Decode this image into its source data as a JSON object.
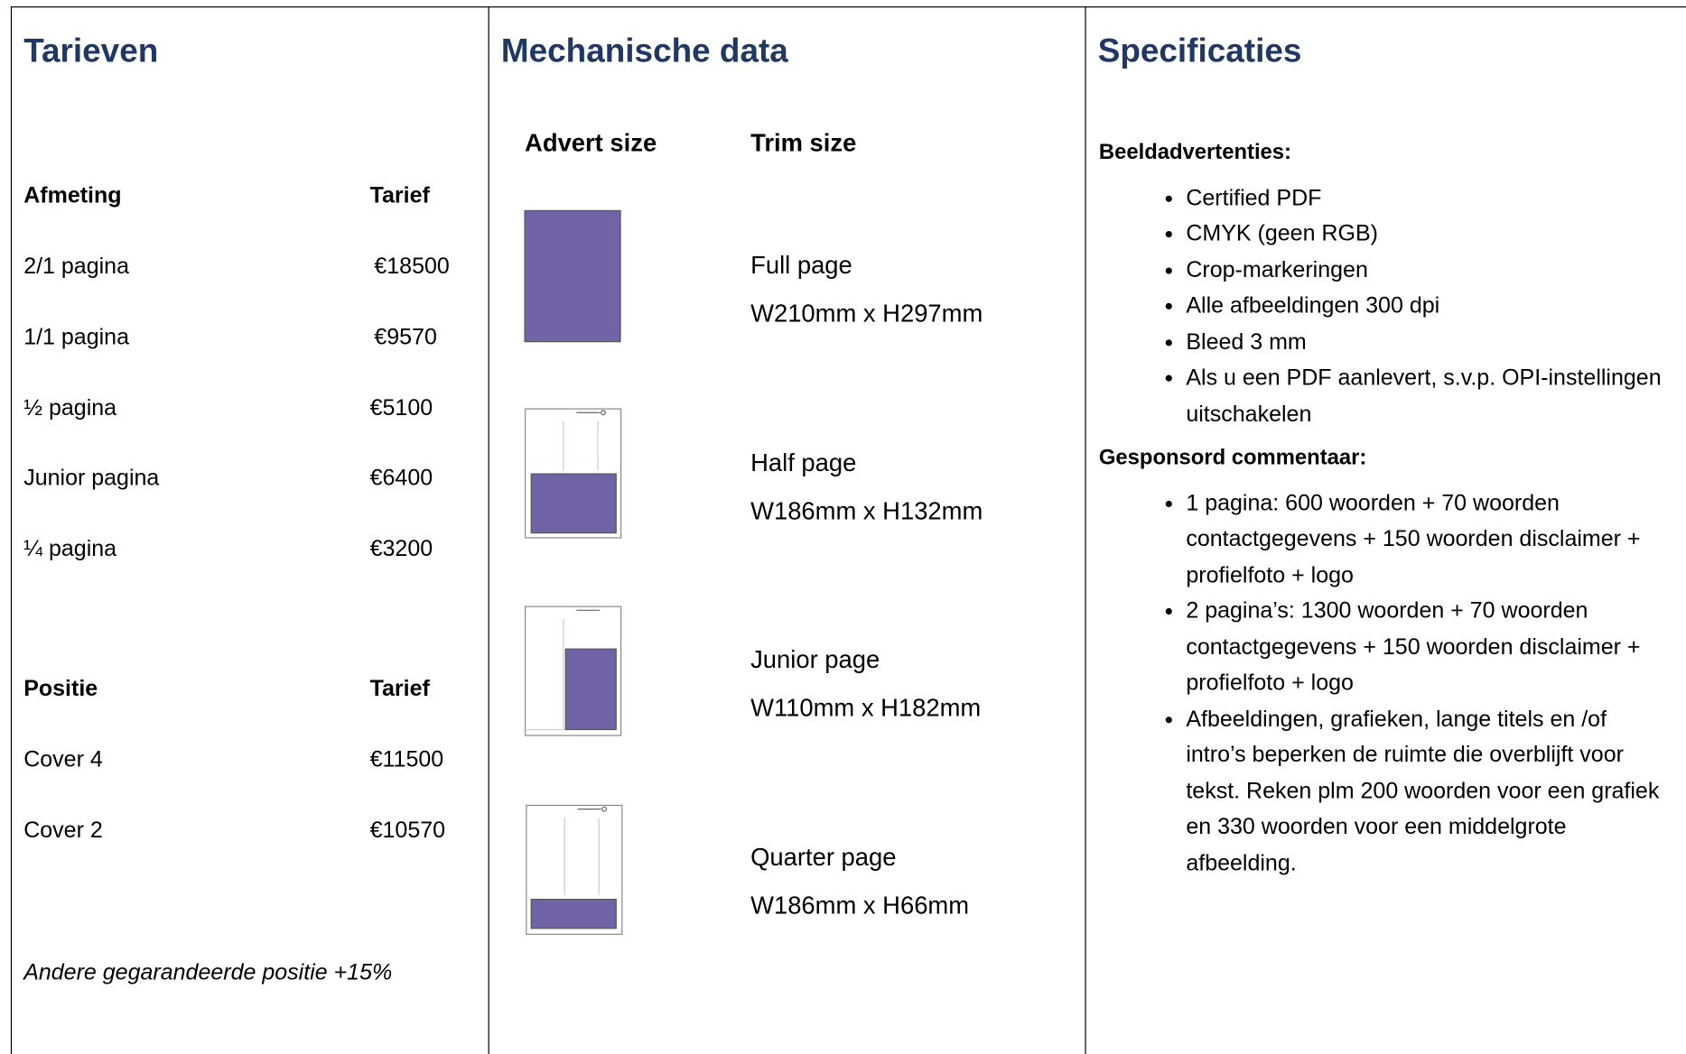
{
  "tarieven": {
    "title": "Tarieven",
    "size_header": [
      "Afmeting",
      "Tarief"
    ],
    "size_rows": [
      [
        "2/1 pagina",
        "€18500"
      ],
      [
        "1/1 pagina",
        "€9570"
      ],
      [
        "½ pagina",
        "€5100"
      ],
      [
        "Junior pagina",
        "€6400"
      ],
      [
        "¼ pagina",
        "€3200"
      ]
    ],
    "position_header": [
      "Positie",
      "Tarief"
    ],
    "position_rows": [
      [
        "Cover 4",
        "€11500"
      ],
      [
        "Cover 2",
        "€10570"
      ]
    ],
    "note": "Andere gegarandeerde positie +15%"
  },
  "mechanisch": {
    "title": "Mechanische data",
    "headers": [
      "Advert size",
      "Trim size"
    ],
    "items": [
      {
        "name": "Full page",
        "dims": "W210mm x H297mm"
      },
      {
        "name": "Half page",
        "dims": "W186mm x H132mm"
      },
      {
        "name": "Junior page",
        "dims": "W110mm x H182mm"
      },
      {
        "name": "Quarter page",
        "dims": "W186mm x H66mm"
      }
    ]
  },
  "specificaties": {
    "title": "Specificaties",
    "sections": [
      {
        "heading": "Beeldadvertenties:",
        "items": [
          "Certified PDF",
          "CMYK (geen RGB)",
          "Crop-markeringen",
          "Alle afbeeldingen 300 dpi",
          "Bleed 3 mm",
          "Als u een PDF aanlevert, s.v.p. OPI-instellingen uitschakelen"
        ]
      },
      {
        "heading": "Gesponsord commentaar:",
        "items": [
          "1 pagina: 600 woorden + 70 woorden contactgegevens + 150 woorden disclaimer + profielfoto + logo",
          "2 pagina’s: 1300 woorden + 70 woorden contactgegevens + 150 woorden disclaimer + profielfoto + logo",
          "Afbeeldingen, grafieken, lange titels en /of intro’s beperken de ruimte die overblijft voor tekst. Reken plm 200 woorden voor een grafiek en 330 woorden voor een middelgrote afbeelding."
        ]
      }
    ]
  }
}
